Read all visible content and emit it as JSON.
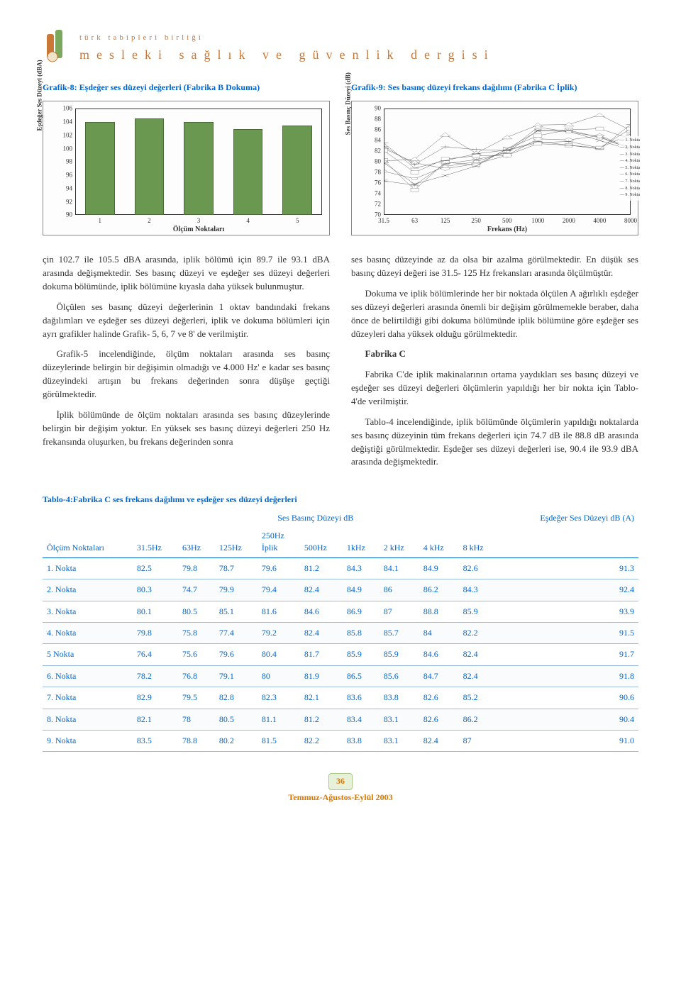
{
  "header": {
    "sub": "türk tabipleri birliği",
    "main": "mesleki sağlık ve güvenlik dergisi"
  },
  "chart8": {
    "title": "Grafik-8: Eşdeğer ses düzeyi değerleri (Fabrika B Dokuma)",
    "type": "bar",
    "ylabel": "Eşdeğer Ses Düzeyi (dBA)",
    "xlabel": "Ölçüm Noktaları",
    "ylim": [
      90,
      106
    ],
    "yticks": [
      90,
      92,
      94,
      96,
      98,
      100,
      102,
      104,
      106
    ],
    "categories": [
      "1",
      "2",
      "3",
      "4",
      "5"
    ],
    "values": [
      104,
      104.5,
      104,
      103,
      103.5
    ],
    "bar_color": "#6b9850",
    "bar_border": "#4a6838",
    "bar_width": 0.6,
    "background": "#fdfdfd"
  },
  "chart9": {
    "title": "Grafik-9: Ses basınç düzeyi frekans dağılımı (Fabrika C İplik)",
    "type": "line",
    "ylabel": "Ses Basınç Düzeyi (dB)",
    "xlabel": "Frekans (Hz)",
    "ylim": [
      70,
      90
    ],
    "yticks": [
      70,
      72,
      74,
      76,
      78,
      80,
      82,
      84,
      86,
      88,
      90
    ],
    "x_values": [
      31.5,
      63,
      125,
      250,
      500,
      1000,
      2000,
      4000,
      8000
    ],
    "x_log": true,
    "series": [
      {
        "name": "1. Nokta",
        "marker": "diamond",
        "values": [
          82.5,
          79.8,
          78.7,
          79.6,
          81.2,
          84.3,
          84.1,
          84.9,
          82.6
        ]
      },
      {
        "name": "2. Nokta",
        "marker": "square",
        "values": [
          80.3,
          74.7,
          79.9,
          79.4,
          82.4,
          84.9,
          86.0,
          86.2,
          84.3
        ]
      },
      {
        "name": "3. Nokta",
        "marker": "triangle",
        "values": [
          80.1,
          80.5,
          85.1,
          81.6,
          84.6,
          86.9,
          87.0,
          88.8,
          85.9
        ]
      },
      {
        "name": "4. Nokta",
        "marker": "x",
        "values": [
          79.8,
          75.8,
          77.4,
          79.2,
          82.4,
          85.8,
          85.7,
          84.0,
          82.2
        ]
      },
      {
        "name": "5. Nokta",
        "marker": "star",
        "values": [
          76.4,
          75.6,
          79.6,
          80.4,
          81.7,
          85.9,
          85.9,
          84.6,
          82.4
        ]
      },
      {
        "name": "6. Nokta",
        "marker": "circle",
        "values": [
          78.2,
          76.8,
          79.1,
          80.0,
          81.9,
          86.5,
          85.6,
          84.7,
          82.4
        ]
      },
      {
        "name": "7. Nokta",
        "marker": "plus",
        "values": [
          82.9,
          79.5,
          82.8,
          82.3,
          82.1,
          83.6,
          83.8,
          82.6,
          85.2
        ]
      },
      {
        "name": "8. Nokta",
        "marker": "square",
        "values": [
          82.1,
          78.0,
          80.5,
          81.1,
          81.2,
          83.4,
          83.1,
          82.6,
          86.2
        ]
      },
      {
        "name": "9. Nokta",
        "marker": "dash",
        "values": [
          83.5,
          78.8,
          80.2,
          81.5,
          82.2,
          83.8,
          83.1,
          82.4,
          87.0
        ]
      }
    ],
    "line_color": "#444444",
    "background": "#fdfdfd"
  },
  "body": {
    "left": [
      "çin 102.7 ile 105.5 dBA arasında, iplik bölümü için 89.7 ile 93.1 dBA arasında değişmektedir. Ses basınç düzeyi ve eşdeğer ses düzeyi değerleri dokuma bölümünde, iplik bölümüne kıyasla daha yüksek bulunmuştur.",
      "Ölçülen ses basınç düzeyi değerlerinin 1 oktav bandındaki frekans dağılımları ve eşdeğer ses düzeyi değerleri, iplik ve dokuma bölümleri için ayrı grafikler halinde Grafik- 5, 6, 7 ve 8' de verilmiştir.",
      "Grafik-5 incelendiğinde, ölçüm noktaları arasında ses basınç düzeylerinde belirgin bir değişimin olmadığı ve 4.000 Hz' e kadar ses basınç düzeyindeki artışın bu frekans değerinden sonra düşüşe geçtiği görülmektedir.",
      "İplik bölümünde de ölçüm noktaları arasında ses basınç düzeylerinde belirgin bir değişim yoktur. En yüksek ses basınç düzeyi değerleri 250 Hz frekansında oluşurken, bu frekans değerinden sonra"
    ],
    "right": [
      "ses basınç düzeyinde az da olsa bir azalma görülmektedir. En düşük ses basınç düzeyi değeri ise 31.5- 125 Hz frekansları arasında ölçülmüştür.",
      "Dokuma ve iplik bölümlerinde her bir noktada ölçülen A ağırlıklı eşdeğer ses düzeyi değerleri arasında önemli bir değişim görülmemekle beraber, daha önce de belirtildiği gibi dokuma bölümünde iplik bölümüne göre eşdeğer ses düzeyleri daha yüksek olduğu görülmektedir.",
      "Fabrika C",
      "Fabrika C'de iplik makinalarının ortama yaydıkları ses basınç düzeyi ve eşdeğer ses düzeyi değerleri ölçümlerin yapıldığı her bir nokta için Tablo-4'de verilmiştir.",
      "Tablo-4 incelendiğinde, iplik bölümünde ölçümlerin yapıldığı noktalarda ses basınç düzeyinin tüm frekans değerleri için 74.7 dB ile 88.8 dB arasında değiştiği görülmektedir. Eşdeğer ses düzeyi değerleri ise, 90.4 ile 93.9 dBA arasında değişmektedir."
    ],
    "fabrika_c_label": "Fabrika C"
  },
  "table": {
    "title": "Tablo-4:Fabrika C ses frekans dağılımı ve eşdeğer ses düzeyi değerleri",
    "group_headers": {
      "main": "Ses Basınç Düzeyi dB",
      "sub": "İplik",
      "last": "Eşdeğer Ses Düzeyi dB (A)"
    },
    "col_headers": [
      "Ölçüm Noktaları",
      "31.5Hz",
      "63Hz",
      "125Hz",
      "250Hz",
      "500Hz",
      "1kHz",
      "2 kHz",
      "4 kHz",
      "8 kHz",
      ""
    ],
    "rows": [
      [
        "1. Nokta",
        "82.5",
        "79.8",
        "78.7",
        "79.6",
        "81.2",
        "84.3",
        "84.1",
        "84.9",
        "82.6",
        "91.3"
      ],
      [
        "2. Nokta",
        "80.3",
        "74.7",
        "79.9",
        "79.4",
        "82.4",
        "84.9",
        "86",
        "86.2",
        "84.3",
        "92.4"
      ],
      [
        "3. Nokta",
        "80.1",
        "80.5",
        "85.1",
        "81.6",
        "84.6",
        "86.9",
        "87",
        "88.8",
        "85.9",
        "93.9"
      ],
      [
        "4. Nokta",
        "79.8",
        "75.8",
        "77.4",
        "79.2",
        "82.4",
        "85.8",
        "85.7",
        "84",
        "82.2",
        "91.5"
      ],
      [
        "5 Nokta",
        "76.4",
        "75.6",
        "79.6",
        "80.4",
        "81.7",
        "85.9",
        "85.9",
        "84.6",
        "82.4",
        "91.7"
      ],
      [
        "6. Nokta",
        "78.2",
        "76.8",
        "79.1",
        "80",
        "81.9",
        "86.5",
        "85.6",
        "84.7",
        "82.4",
        "91.8"
      ],
      [
        "7. Nokta",
        "82.9",
        "79.5",
        "82.8",
        "82.3",
        "82.1",
        "83.6",
        "83.8",
        "82.6",
        "85.2",
        "90.6"
      ],
      [
        "8. Nokta",
        "82.1",
        "78",
        "80.5",
        "81.1",
        "81.2",
        "83.4",
        "83.1",
        "82.6",
        "86.2",
        "90.4"
      ],
      [
        "9. Nokta",
        "83.5",
        "78.8",
        "80.2",
        "81.5",
        "82.2",
        "83.8",
        "83.1",
        "82.4",
        "87",
        "91.0"
      ]
    ],
    "header_color": "#0066cc",
    "row_color": "#0066cc",
    "border_color": "#9bbde0"
  },
  "footer": {
    "page_num": "36",
    "date": "Temmuz-Ağustos-Eylül 2003"
  }
}
